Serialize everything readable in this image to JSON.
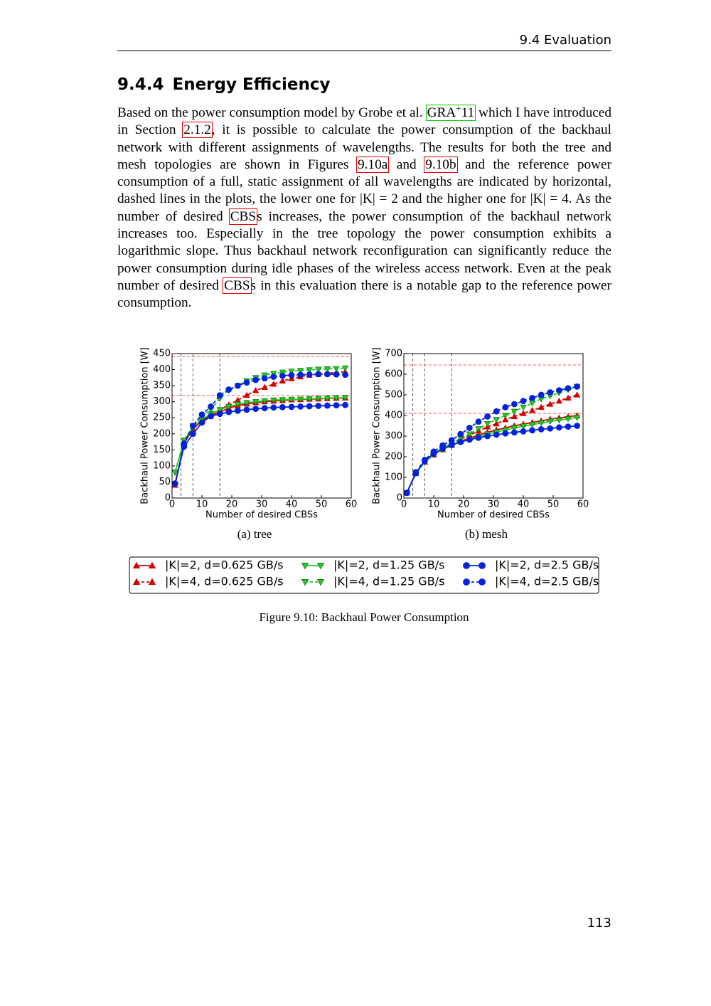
{
  "header": {
    "title": "9.4 Evaluation"
  },
  "section": {
    "number": "9.4.4",
    "title": "Energy Efficiency"
  },
  "paragraph": [
    {
      "text": "Based on the power consumption model by Grobe et al. "
    },
    {
      "text": "GRA",
      "sup": "+",
      "after": "11",
      "box": "#00cc00"
    },
    {
      "text": " which I have introduced in Section "
    },
    {
      "text": "2.1.2",
      "box": "#e00000"
    },
    {
      "text": ", it is possible to calculate the power consumption of the backhaul network with different assignments of wavelengths. The results for both the tree and mesh topologies are shown in Figures "
    },
    {
      "text": "9.10a",
      "box": "#e00000"
    },
    {
      "text": " and "
    },
    {
      "text": "9.10b",
      "box": "#e00000"
    },
    {
      "text": " and the reference power consumption of a full, static assignment of all wavelengths are indicated by horizontal, dashed lines in the plots, the lower one for |K| = 2 and the higher one for |K| = 4. As the number of desired "
    },
    {
      "text": "CBS",
      "box": "#e00000"
    },
    {
      "text": "s increases, the power consumption of the backhaul network increases too. Especially in the tree topology the power consumption exhibits a logarithmic slope. Thus backhaul network reconfiguration can significantly reduce the power consumption during idle phases of the wireless access network. Even at the peak number of desired "
    },
    {
      "text": "CBS",
      "box": "#e00000"
    },
    {
      "text": "s in this evaluation there is a notable gap to the reference power consumption."
    }
  ],
  "chart_data": [
    {
      "type": "line",
      "caption": "(a) tree",
      "xlabel": "Number of desired CBSs",
      "ylabel": "Backhaul Power Consumption [W]",
      "xlim": [
        0,
        60
      ],
      "xticks": [
        0,
        10,
        20,
        30,
        40,
        50,
        60
      ],
      "ylim": [
        0,
        450
      ],
      "yticks": [
        0,
        50,
        100,
        150,
        200,
        250,
        300,
        350,
        400,
        450
      ],
      "hlines": [
        320,
        440
      ],
      "hline_color": "#ff5555",
      "vlines": [
        3,
        7,
        16
      ],
      "vline_color": "#555555",
      "x": [
        1,
        4,
        7,
        10,
        13,
        16,
        19,
        22,
        25,
        28,
        31,
        34,
        37,
        40,
        43,
        46,
        49,
        52,
        55,
        58
      ],
      "series": [
        {
          "name": "|K|=2, d=0.625 GB/s",
          "color": "#d40000",
          "marker": "^",
          "linestyle": "solid",
          "values": [
            40,
            170,
            215,
            240,
            258,
            268,
            280,
            288,
            293,
            297,
            300,
            302,
            304,
            306,
            307,
            308,
            309,
            310,
            311,
            312
          ]
        },
        {
          "name": "|K|=4, d=0.625 GB/s",
          "color": "#d40000",
          "marker": "^",
          "linestyle": "dashed",
          "values": [
            40,
            170,
            215,
            245,
            262,
            275,
            290,
            305,
            320,
            335,
            345,
            355,
            365,
            372,
            378,
            383,
            386,
            389,
            391,
            393
          ]
        },
        {
          "name": "|K|=2, d=1.25 GB/s",
          "color": "#22cc22",
          "marker": "v",
          "linestyle": "solid",
          "values": [
            80,
            180,
            220,
            245,
            262,
            275,
            285,
            292,
            297,
            300,
            303,
            305,
            306,
            307,
            308,
            309,
            310,
            311,
            312,
            313
          ]
        },
        {
          "name": "|K|=4, d=1.25 GB/s",
          "color": "#22cc22",
          "marker": "v",
          "linestyle": "dashed",
          "values": [
            80,
            180,
            225,
            255,
            275,
            310,
            335,
            350,
            365,
            375,
            383,
            388,
            392,
            395,
            397,
            399,
            401,
            402,
            403,
            405
          ]
        },
        {
          "name": "|K|=2, d=2.5 GB/s",
          "color": "#0022dd",
          "marker": "o",
          "linestyle": "solid",
          "values": [
            45,
            160,
            200,
            235,
            255,
            262,
            268,
            272,
            275,
            278,
            280,
            282,
            283,
            284,
            285,
            286,
            287,
            288,
            289,
            290
          ]
        },
        {
          "name": "|K|=4, d=2.5 GB/s",
          "color": "#0022dd",
          "marker": "o",
          "linestyle": "dashed",
          "values": [
            45,
            170,
            225,
            260,
            285,
            320,
            338,
            350,
            360,
            368,
            373,
            378,
            381,
            383,
            384,
            385,
            386,
            386,
            385,
            384
          ]
        }
      ]
    },
    {
      "type": "line",
      "caption": "(b) mesh",
      "xlabel": "Number of desired CBSs",
      "ylabel": "Backhaul Power Consumption [W]",
      "xlim": [
        0,
        60
      ],
      "xticks": [
        0,
        10,
        20,
        30,
        40,
        50,
        60
      ],
      "ylim": [
        0,
        700
      ],
      "yticks": [
        0,
        100,
        200,
        300,
        400,
        500,
        600,
        700
      ],
      "hlines": [
        410,
        645
      ],
      "hline_color": "#ff5555",
      "vlines": [
        3,
        7,
        16
      ],
      "vline_color": "#555555",
      "x": [
        1,
        4,
        7,
        10,
        13,
        16,
        19,
        22,
        25,
        28,
        31,
        34,
        37,
        40,
        43,
        46,
        49,
        52,
        55,
        58
      ],
      "series": [
        {
          "color": "#d40000",
          "marker": "^",
          "linestyle": "solid",
          "values": [
            25,
            120,
            175,
            210,
            235,
            255,
            275,
            290,
            305,
            318,
            330,
            340,
            350,
            358,
            366,
            374,
            382,
            388,
            394,
            400
          ]
        },
        {
          "color": "#d40000",
          "marker": "^",
          "linestyle": "dashed",
          "values": [
            25,
            120,
            175,
            210,
            235,
            260,
            285,
            305,
            325,
            345,
            360,
            380,
            395,
            410,
            425,
            440,
            455,
            470,
            485,
            500
          ]
        },
        {
          "color": "#22cc22",
          "marker": "v",
          "linestyle": "solid",
          "values": [
            25,
            120,
            175,
            210,
            235,
            255,
            270,
            285,
            298,
            310,
            320,
            330,
            340,
            348,
            356,
            364,
            372,
            378,
            384,
            390
          ]
        },
        {
          "color": "#22cc22",
          "marker": "v",
          "linestyle": "dashed",
          "values": [
            25,
            120,
            175,
            215,
            240,
            265,
            290,
            310,
            335,
            360,
            380,
            400,
            420,
            440,
            460,
            480,
            495,
            510,
            525,
            540
          ]
        },
        {
          "color": "#0022dd",
          "marker": "o",
          "linestyle": "solid",
          "values": [
            25,
            120,
            180,
            215,
            240,
            258,
            272,
            283,
            292,
            300,
            307,
            313,
            318,
            323,
            328,
            333,
            337,
            342,
            346,
            350
          ]
        },
        {
          "color": "#0022dd",
          "marker": "o",
          "linestyle": "dashed",
          "values": [
            25,
            125,
            185,
            225,
            255,
            280,
            310,
            340,
            370,
            395,
            420,
            440,
            455,
            470,
            485,
            500,
            512,
            522,
            532,
            540
          ]
        }
      ]
    }
  ],
  "figure": {
    "caption": "Figure 9.10: Backhaul Power Consumption"
  },
  "footer": {
    "page": "113"
  }
}
